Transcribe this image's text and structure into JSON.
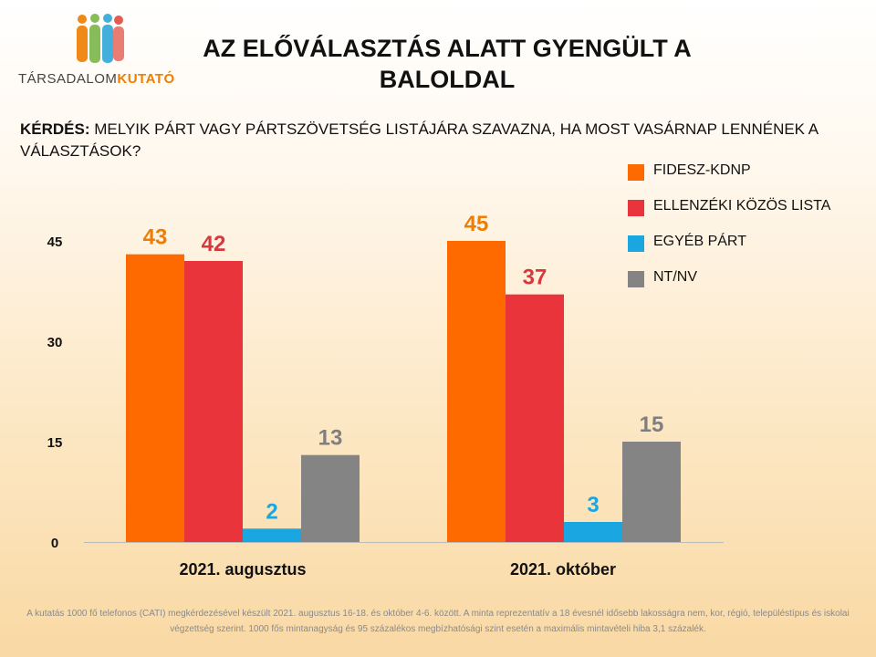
{
  "logo": {
    "text_light": "TÁRSADALOM",
    "text_bold": "KUTATÓ",
    "people_colors": [
      "#f07d00",
      "#7ab648",
      "#2fa8d9",
      "#e04a3f"
    ]
  },
  "title": "AZ ELŐVÁLASZTÁS ALATT GYENGÜLT A BALOLDAL",
  "question": {
    "prefix": "KÉRDÉS:",
    "text": "MELYIK PÁRT VAGY PÁRTSZÖVETSÉG LISTÁJÁRA SZAVAZNA, HA MOST VASÁRNAP LENNÉNEK A VÁLASZTÁSOK?"
  },
  "chart_data": {
    "type": "bar",
    "categories": [
      "2021. augusztus",
      "2021. október"
    ],
    "series": [
      {
        "name": "FIDESZ-KDNP",
        "values": [
          43,
          45
        ],
        "color": "#ff6a00"
      },
      {
        "name": "ELLENZÉKI KÖZÖS LISTA",
        "values": [
          42,
          37
        ],
        "color": "#e8343a"
      },
      {
        "name": "EGYÉB PÁRT",
        "values": [
          2,
          3
        ],
        "color": "#1aa6e0"
      },
      {
        "name": "NT/NV",
        "values": [
          13,
          15
        ],
        "color": "#848484"
      }
    ],
    "label_colors": [
      "#f07d00",
      "#d9373d",
      "#1aa6e0",
      "#7f7f7f"
    ],
    "yticks": [
      0,
      15,
      30,
      45
    ],
    "ylim": [
      0,
      45
    ],
    "grid": false,
    "legend_position": "right"
  },
  "footnote": "A kutatás 1000 fő telefonos (CATI) megkérdezésével készült 2021. augusztus 16-18. és október 4-6. között. A minta reprezentatív a 18 évesnél idősebb lakosságra nem, kor, régió, településtípus és iskolai végzettség szerint. 1000 fős mintanagyság és 95 százalékos megbízhatósági szint esetén a maximális mintavételi hiba 3,1 százalék."
}
